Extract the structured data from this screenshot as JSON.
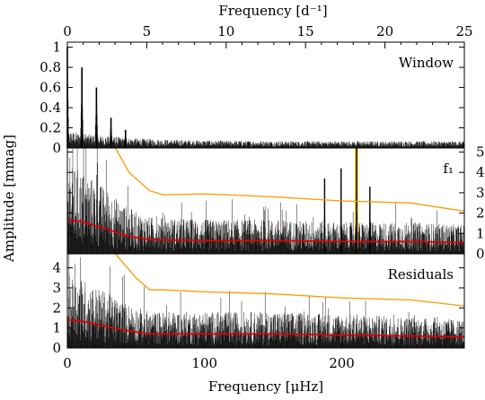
{
  "chart_data": {
    "type": "line",
    "top_axis": {
      "label": "Frequency [d⁻¹]",
      "range": [
        0,
        25
      ],
      "ticks": [
        "0",
        "5",
        "10",
        "15",
        "20",
        "25"
      ]
    },
    "bottom_axis": {
      "label": "Frequency [μHz]",
      "range": [
        0,
        289.35
      ],
      "ticks": [
        "0",
        "100",
        "200"
      ]
    },
    "y_axis_label": "Amplitude [mmag]",
    "colors": {
      "spectrum": "#000000",
      "significance_threshold": "#ff9900",
      "mean_noise": "#e00000",
      "highlight": "#ffcc00"
    },
    "panels": [
      {
        "label": "Window",
        "ylim": [
          0,
          1.05
        ],
        "y_ticks": [
          "0",
          "0.2",
          "0.4",
          "0.6",
          "0.8",
          "1"
        ],
        "y_axis_side": "left",
        "peaks_uHz": [
          {
            "x": 0.0,
            "y": 1.0
          },
          {
            "x": 10.6,
            "y": 0.8
          },
          {
            "x": 21.2,
            "y": 0.6
          },
          {
            "x": 31.8,
            "y": 0.3
          },
          {
            "x": 42.4,
            "y": 0.18
          }
        ],
        "noise_level": 0.1
      },
      {
        "label": "f₁",
        "ylim": [
          0,
          5.2
        ],
        "y_ticks": [
          "0",
          "1",
          "2",
          "3",
          "4",
          "5"
        ],
        "y_axis_side": "right",
        "highlight_band_uHz": [
          209.5,
          212.0
        ],
        "signal_peaks": [
          {
            "x": 210.8,
            "y": 5.2
          },
          {
            "x": 187.5,
            "y": 3.7
          },
          {
            "x": 199.5,
            "y": 4.2
          },
          {
            "x": 220.5,
            "y": 3.3
          }
        ],
        "significance_threshold": {
          "x": [
            35,
            45,
            60,
            70,
            100,
            150,
            200,
            250,
            289
          ],
          "y": [
            5.4,
            4.0,
            3.1,
            2.9,
            2.95,
            2.8,
            2.6,
            2.5,
            2.1
          ]
        },
        "mean_noise": {
          "x": [
            0,
            10,
            20,
            30,
            40,
            50,
            60,
            100,
            150,
            200,
            250,
            289
          ],
          "y": [
            1.65,
            1.6,
            1.4,
            1.2,
            0.95,
            0.8,
            0.7,
            0.65,
            0.65,
            0.6,
            0.6,
            0.55
          ]
        }
      },
      {
        "label": "Residuals",
        "ylim": [
          0,
          4.7
        ],
        "y_ticks": [
          "0",
          "1",
          "2",
          "3",
          "4"
        ],
        "y_axis_side": "left",
        "significance_threshold": {
          "x": [
            35,
            40,
            50,
            60,
            70,
            100,
            150,
            200,
            250,
            289
          ],
          "y": [
            4.7,
            4.3,
            3.5,
            2.9,
            2.9,
            2.8,
            2.7,
            2.5,
            2.4,
            2.1
          ]
        },
        "mean_noise": {
          "x": [
            0,
            10,
            20,
            30,
            40,
            50,
            60,
            100,
            150,
            200,
            250,
            289
          ],
          "y": [
            1.4,
            1.35,
            1.2,
            1.05,
            0.9,
            0.8,
            0.7,
            0.7,
            0.7,
            0.65,
            0.6,
            0.55
          ]
        }
      }
    ]
  }
}
